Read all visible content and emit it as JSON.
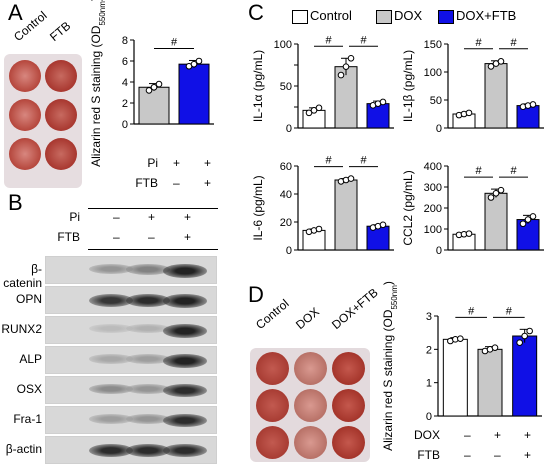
{
  "panels": {
    "A": {
      "letter": "A",
      "plate_labels": [
        "Control",
        "FTB"
      ],
      "table_rows": [
        {
          "label": "Pi",
          "values": [
            "+",
            "+"
          ]
        },
        {
          "label": "FTB",
          "values": [
            "–",
            "+"
          ]
        }
      ]
    },
    "B": {
      "letter": "B",
      "header_rows": [
        {
          "label": "Pi",
          "values": [
            "–",
            "+",
            "+"
          ]
        },
        {
          "label": "FTB",
          "values": [
            "–",
            "–",
            "+"
          ]
        }
      ],
      "blot_rows": [
        {
          "label": "β-catenin",
          "intensity": [
            0.35,
            0.45,
            0.95
          ]
        },
        {
          "label": "OPN",
          "intensity": [
            0.85,
            0.9,
            0.95
          ]
        },
        {
          "label": "RUNX2",
          "intensity": [
            0.15,
            0.2,
            0.95
          ]
        },
        {
          "label": "ALP",
          "intensity": [
            0.25,
            0.3,
            0.95
          ]
        },
        {
          "label": "OSX",
          "intensity": [
            0.4,
            0.35,
            0.9
          ]
        },
        {
          "label": "Fra-1",
          "intensity": [
            0.3,
            0.35,
            0.9
          ]
        },
        {
          "label": "β-actin",
          "intensity": [
            0.9,
            0.9,
            0.9
          ]
        }
      ]
    },
    "C": {
      "letter": "C",
      "legend": [
        "Control",
        "DOX",
        "DOX+FTB"
      ]
    },
    "D": {
      "letter": "D",
      "plate_labels": [
        "Control",
        "DOX",
        "DOX+FTB"
      ],
      "table_rows": [
        {
          "label": "DOX",
          "values": [
            "–",
            "+",
            "+"
          ]
        },
        {
          "label": "FTB",
          "values": [
            "–",
            "–",
            "+"
          ]
        }
      ]
    }
  },
  "colors": {
    "control": "#ffffff",
    "dox": "#c8c8c8",
    "pi": "#c8c8c8",
    "ftb": "#1010e6",
    "stain": "#b5463c"
  },
  "chart_data": [
    {
      "id": "A",
      "type": "bar",
      "categories": [
        "Pi",
        "Pi+FTB"
      ],
      "values": [
        3.5,
        5.7
      ],
      "errors": [
        0.35,
        0.35
      ],
      "points": [
        [
          3.2,
          3.5,
          3.8
        ],
        [
          5.5,
          5.7,
          6.0
        ]
      ],
      "colors": [
        "#c8c8c8",
        "#1010e6"
      ],
      "ylabel": "Alizarin red S staining (OD550nm)",
      "yticks": [
        "0",
        "2",
        "4",
        "6",
        "8"
      ],
      "ylim": [
        0,
        8
      ],
      "sig": [
        [
          "#",
          0,
          1
        ]
      ]
    },
    {
      "id": "C1",
      "type": "bar",
      "categories": [
        "Control",
        "DOX",
        "DOX+FTB"
      ],
      "values": [
        21,
        73,
        29
      ],
      "errors": [
        3,
        10,
        3
      ],
      "points": [
        [
          18,
          21,
          24
        ],
        [
          63,
          73,
          83
        ],
        [
          27,
          29,
          31
        ]
      ],
      "colors": [
        "#ffffff",
        "#c8c8c8",
        "#1010e6"
      ],
      "ylabel": "IL-1α (pg/mL)",
      "yticks": [
        "0",
        "",
        "50",
        "",
        "100"
      ],
      "ylim": [
        0,
        100
      ],
      "sig": [
        [
          "#",
          0,
          1
        ],
        [
          "#",
          1,
          2
        ]
      ]
    },
    {
      "id": "C2",
      "type": "bar",
      "categories": [
        "Control",
        "DOX",
        "DOX+FTB"
      ],
      "values": [
        25,
        115,
        40
      ],
      "errors": [
        2,
        5,
        3
      ],
      "points": [
        [
          23,
          25,
          27
        ],
        [
          110,
          115,
          119
        ],
        [
          38,
          40,
          42
        ]
      ],
      "colors": [
        "#ffffff",
        "#c8c8c8",
        "#1010e6"
      ],
      "ylabel": "IL-1β (pg/mL)",
      "yticks": [
        "0",
        "50",
        "100",
        "150"
      ],
      "ylim": [
        0,
        150
      ],
      "sig": [
        [
          "#",
          0,
          1
        ],
        [
          "#",
          1,
          2
        ]
      ]
    },
    {
      "id": "C3",
      "type": "bar",
      "categories": [
        "Control",
        "DOX",
        "DOX+FTB"
      ],
      "values": [
        14,
        50,
        17
      ],
      "errors": [
        1,
        1,
        1
      ],
      "points": [
        [
          13,
          14,
          15
        ],
        [
          49,
          50,
          51
        ],
        [
          16,
          17,
          18
        ]
      ],
      "colors": [
        "#ffffff",
        "#c8c8c8",
        "#1010e6"
      ],
      "ylabel": "IL-6 (pg/mL)",
      "yticks": [
        "0",
        "20",
        "40",
        "60"
      ],
      "ylim": [
        0,
        60
      ],
      "sig": [
        [
          "#",
          0,
          1
        ],
        [
          "#",
          1,
          2
        ]
      ]
    },
    {
      "id": "C4",
      "type": "bar",
      "categories": [
        "Control",
        "DOX",
        "DOX+FTB"
      ],
      "values": [
        75,
        270,
        145
      ],
      "errors": [
        5,
        20,
        20
      ],
      "points": [
        [
          72,
          75,
          78
        ],
        [
          250,
          270,
          285
        ],
        [
          125,
          145,
          160
        ]
      ],
      "colors": [
        "#ffffff",
        "#c8c8c8",
        "#1010e6"
      ],
      "ylabel": "CCL2 (pg/mL)",
      "yticks": [
        "0",
        "100",
        "200",
        "300",
        "400"
      ],
      "ylim": [
        0,
        400
      ],
      "sig": [
        [
          "#",
          0,
          1
        ],
        [
          "#",
          1,
          2
        ]
      ]
    },
    {
      "id": "D",
      "type": "bar",
      "categories": [
        "Control",
        "DOX",
        "DOX+FTB"
      ],
      "values": [
        2.3,
        2.0,
        2.4
      ],
      "errors": [
        0.05,
        0.08,
        0.2
      ],
      "points": [
        [
          2.25,
          2.3,
          2.32
        ],
        [
          1.95,
          2.0,
          2.05
        ],
        [
          2.2,
          2.4,
          2.55
        ]
      ],
      "colors": [
        "#ffffff",
        "#c8c8c8",
        "#1010e6"
      ],
      "ylabel": "Alizarin red S staining (OD550nm)",
      "yticks": [
        "0",
        "1",
        "2",
        "3"
      ],
      "ylim": [
        0,
        3
      ],
      "sig": [
        [
          "#",
          0,
          1
        ],
        [
          "#",
          1,
          2
        ]
      ]
    }
  ]
}
